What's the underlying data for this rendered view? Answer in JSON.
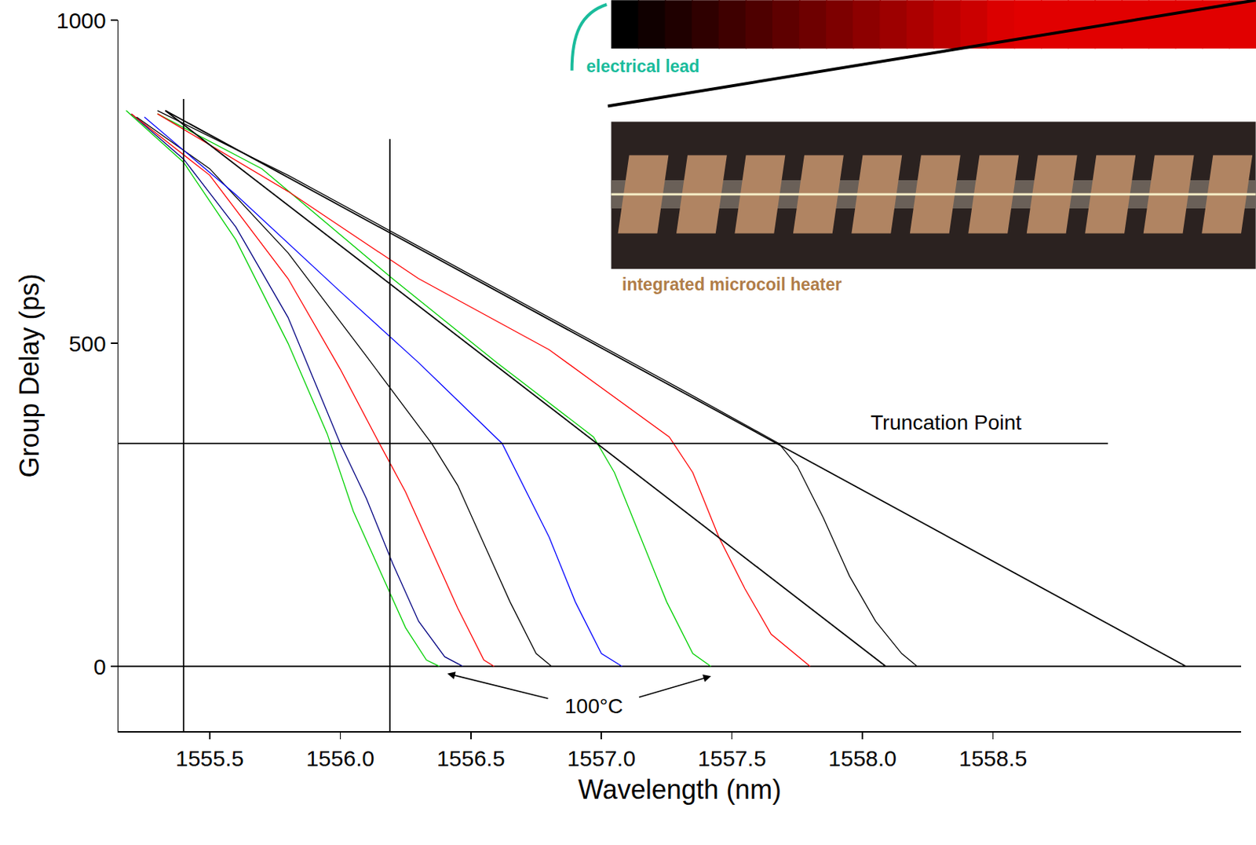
{
  "chart_data": {
    "type": "line",
    "x_label": "Wavelength (nm)",
    "y_label": "Group Delay (ps)",
    "xlim": [
      1555.15,
      1559.45
    ],
    "xticks": [
      1555.5,
      {
        "value": 1556,
        "label": "1556.0"
      },
      1556.5,
      {
        "value": 1557,
        "label": "1557.0"
      },
      1557.5,
      {
        "value": 1558,
        "label": "1558.0"
      },
      1558.5
    ],
    "ylim": [
      -100,
      1000
    ],
    "yticks": [
      0,
      500,
      1000
    ],
    "grid": false,
    "series": [
      {
        "color": "#00d000",
        "x": [
          1555.18,
          1555.4,
          1555.6,
          1555.8,
          1555.95,
          1556.05,
          1556.15,
          1556.25,
          1556.33,
          1556.38
        ],
        "values": [
          860,
          780,
          660,
          500,
          360,
          240,
          150,
          60,
          10,
          0
        ]
      },
      {
        "color": "#000080",
        "x": [
          1555.2,
          1555.4,
          1555.6,
          1555.8,
          1556.0,
          1556.1,
          1556.2,
          1556.3,
          1556.4,
          1556.47
        ],
        "values": [
          855,
          785,
          680,
          540,
          345,
          260,
          160,
          70,
          15,
          0
        ]
      },
      {
        "color": "#ff0000",
        "x": [
          1555.2,
          1555.5,
          1555.8,
          1556.0,
          1556.15,
          1556.25,
          1556.35,
          1556.45,
          1556.55,
          1556.59
        ],
        "values": [
          855,
          760,
          600,
          460,
          345,
          270,
          180,
          90,
          10,
          0
        ]
      },
      {
        "color": "#000000",
        "x": [
          1555.22,
          1555.5,
          1555.8,
          1556.1,
          1556.35,
          1556.45,
          1556.55,
          1556.65,
          1556.75,
          1556.81
        ],
        "values": [
          850,
          770,
          640,
          480,
          345,
          280,
          190,
          100,
          20,
          0
        ]
      },
      {
        "color": "#0000ff",
        "x": [
          1555.25,
          1555.6,
          1556.0,
          1556.3,
          1556.62,
          1556.7,
          1556.8,
          1556.9,
          1557.0,
          1557.08
        ],
        "values": [
          850,
          730,
          580,
          470,
          345,
          280,
          200,
          100,
          20,
          0
        ]
      },
      {
        "color": "#00d000",
        "x": [
          1555.3,
          1555.7,
          1556.2,
          1556.6,
          1556.97,
          1557.05,
          1557.15,
          1557.25,
          1557.35,
          1557.42
        ],
        "values": [
          855,
          770,
          600,
          470,
          355,
          300,
          200,
          100,
          20,
          0
        ]
      },
      {
        "color": "#ff0000",
        "x": [
          1555.3,
          1555.8,
          1556.3,
          1556.8,
          1557.26,
          1557.35,
          1557.45,
          1557.55,
          1557.65,
          1557.8
        ],
        "values": [
          855,
          735,
          600,
          490,
          355,
          300,
          200,
          120,
          50,
          0
        ]
      },
      {
        "color": "#000000",
        "x": [
          1555.3,
          1555.8,
          1556.3,
          1556.8,
          1557.3,
          1557.68,
          1557.75,
          1557.85,
          1557.95,
          1558.05,
          1558.15,
          1558.21
        ],
        "values": [
          860,
          760,
          650,
          540,
          430,
          345,
          310,
          230,
          140,
          70,
          20,
          0
        ]
      },
      {
        "color": "#000000",
        "line_style": "solid",
        "x": [
          1555.33,
          1559.24
        ],
        "values": [
          860,
          0
        ]
      },
      {
        "color": "#000000",
        "line_style": "solid",
        "x": [
          1555.33,
          1558.09
        ],
        "values": [
          860,
          0
        ]
      },
      {
        "color": "#000000",
        "line_style": "solid",
        "x": [
          1555.15,
          1558.94
        ],
        "values": [
          345,
          345
        ]
      },
      {
        "color": "#000000",
        "line_style": "solid",
        "x": [
          1555.4,
          1555.4
        ],
        "values": [
          -100,
          878
        ]
      },
      {
        "color": "#000000",
        "line_style": "solid",
        "x": [
          1556.19,
          1556.19
        ],
        "values": [
          -100,
          816
        ]
      }
    ],
    "annotations": [
      {
        "text": "Truncation Point",
        "x": 1558.32,
        "y": 378
      },
      {
        "text": "100°C",
        "x": 1556.97,
        "y": -61,
        "arrows": [
          {
            "from": [
              1556.8,
              -50
            ],
            "to": [
              1556.41,
              -11
            ]
          },
          {
            "from": [
              1557.14,
              -48
            ],
            "to": [
              1557.42,
              -15
            ]
          }
        ]
      }
    ],
    "inset_labels": {
      "lead": "electrical lead",
      "heater": "integrated microcoil heater"
    }
  }
}
